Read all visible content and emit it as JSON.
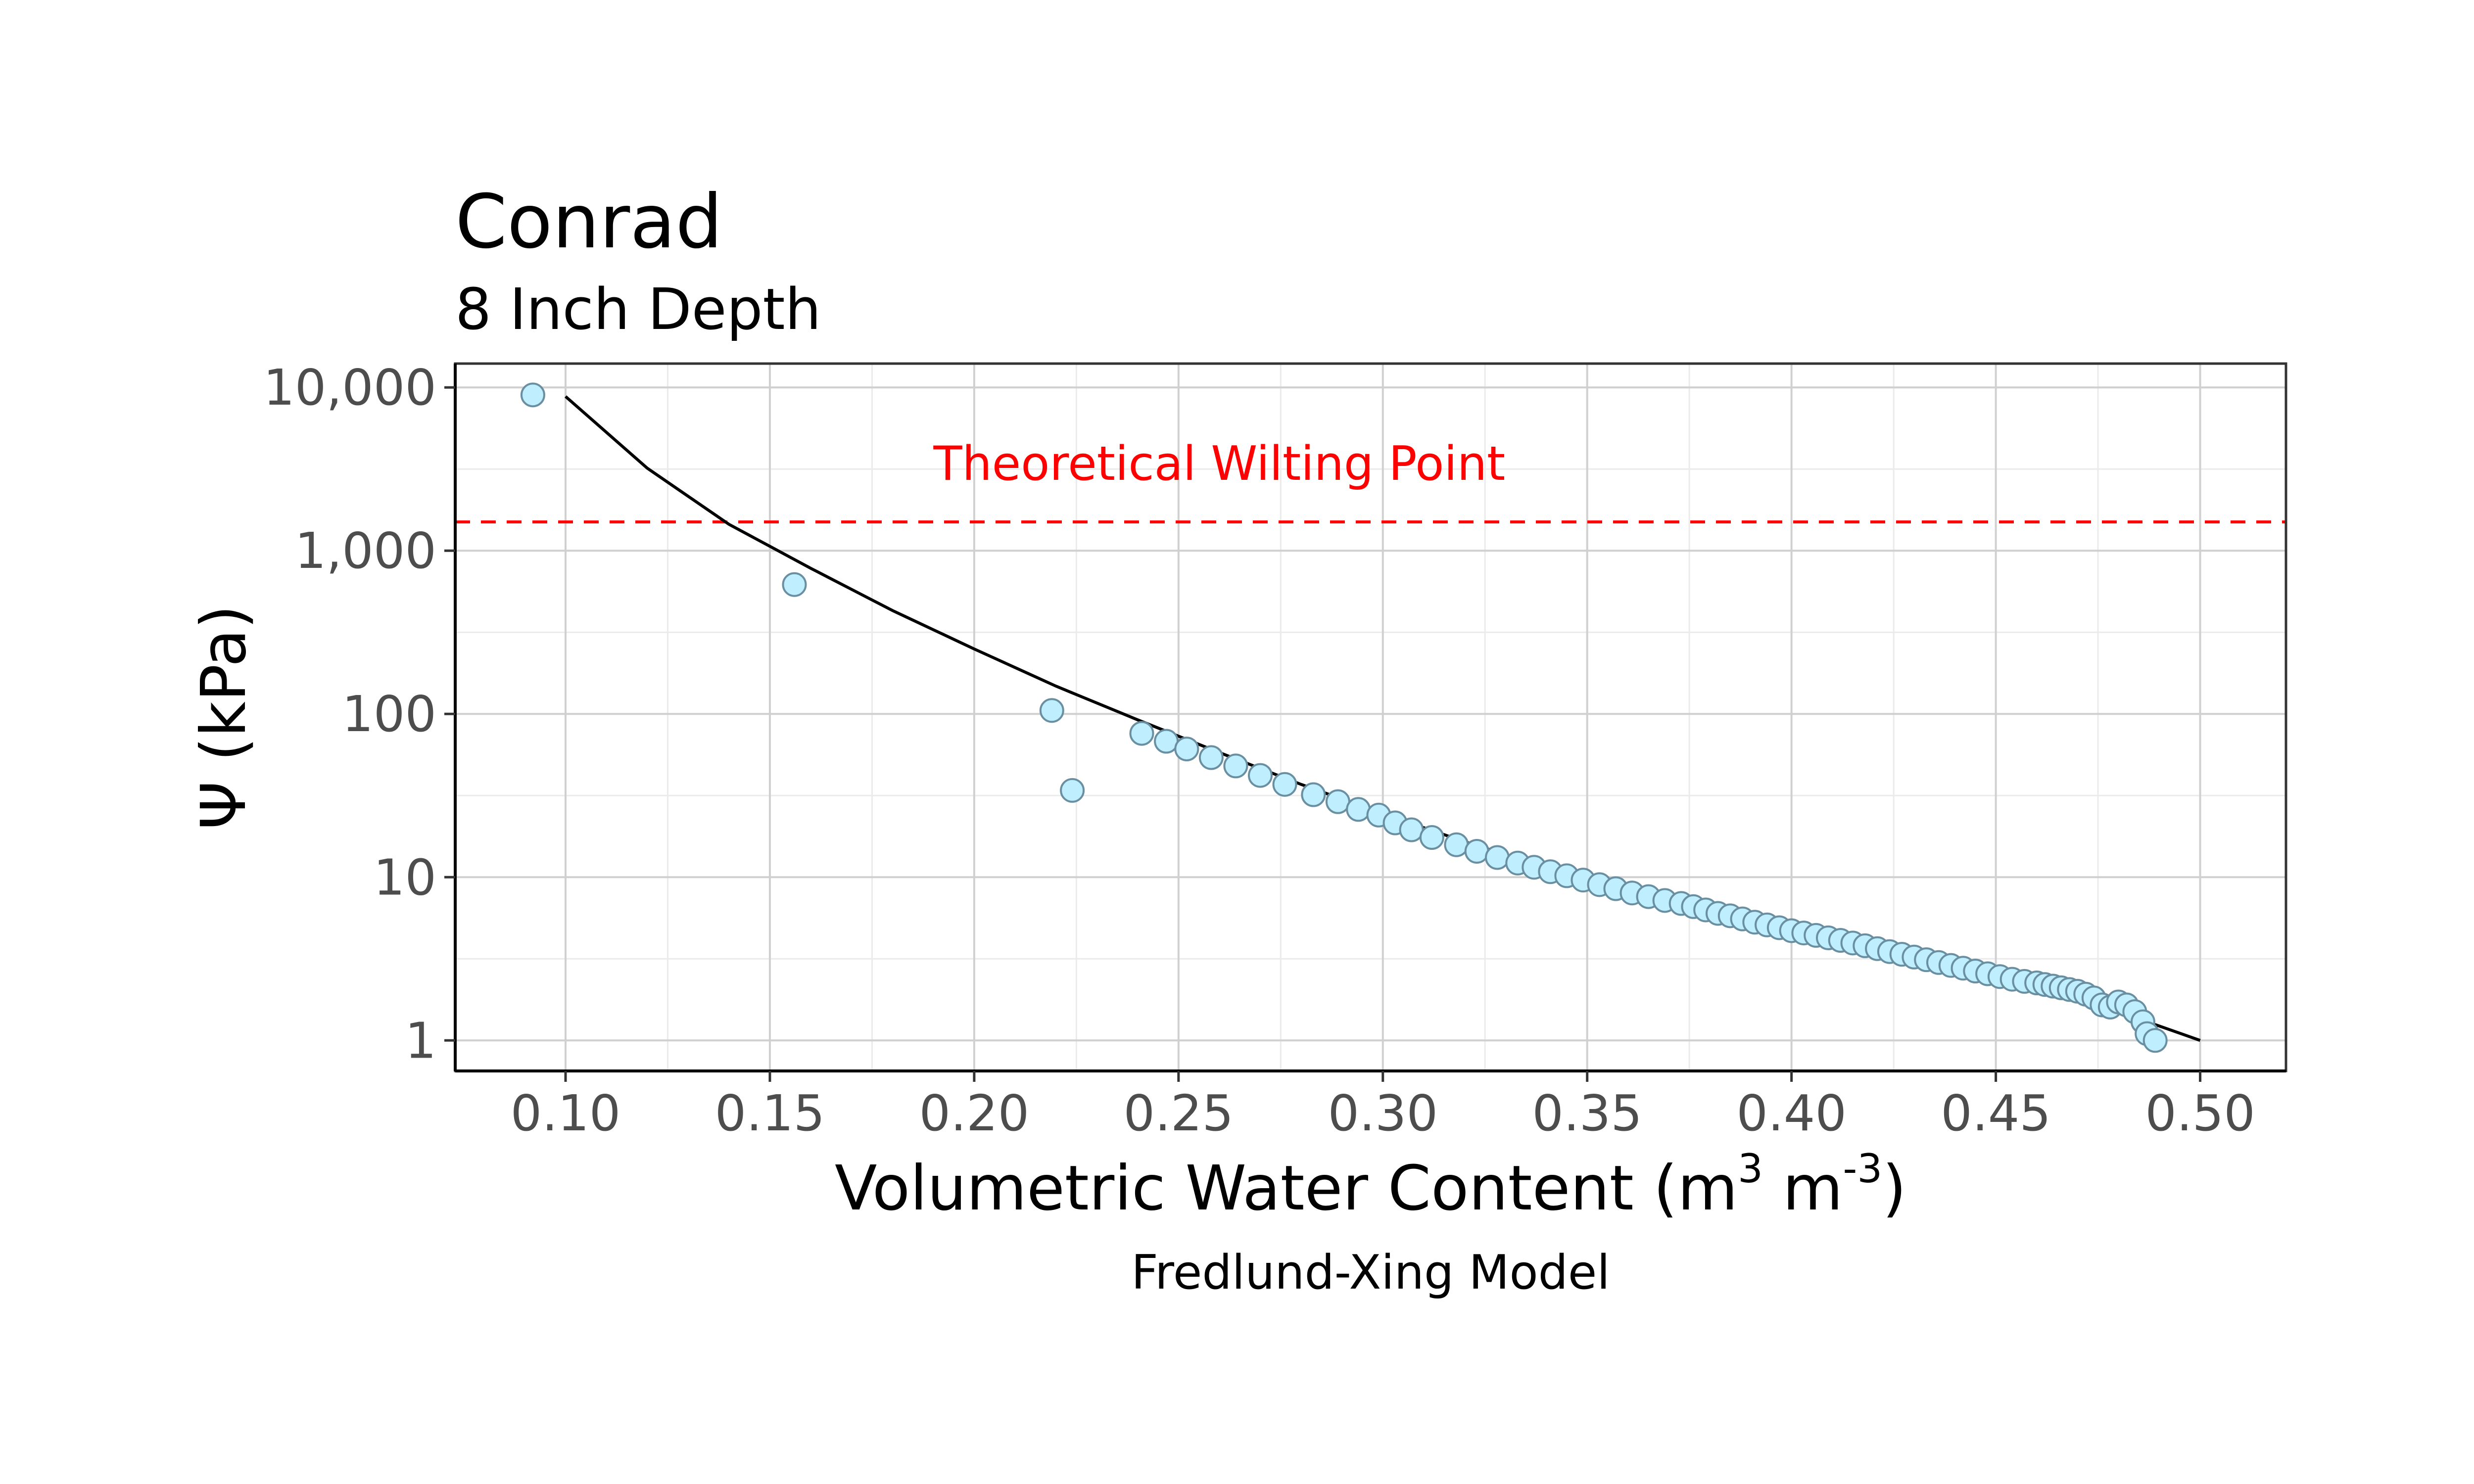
{
  "chart_data": {
    "type": "scatter",
    "title": "Conrad",
    "subtitle": "8 Inch Depth",
    "xlabel_main": "Volumetric Water Content (m",
    "xlabel_sup1": "3",
    "xlabel_mid": " m",
    "xlabel_sup2": "-3",
    "xlabel_end": ")",
    "ylabel": "Ψ (kPa)",
    "caption": "Fredlund-Xing Model",
    "xlim": [
      0.073,
      0.521
    ],
    "ylim": [
      0.65,
      14000
    ],
    "y_scale": "log10",
    "grid": true,
    "x_ticks": [
      {
        "value": 0.1,
        "label": "0.10"
      },
      {
        "value": 0.15,
        "label": "0.15"
      },
      {
        "value": 0.2,
        "label": "0.20"
      },
      {
        "value": 0.25,
        "label": "0.25"
      },
      {
        "value": 0.3,
        "label": "0.30"
      },
      {
        "value": 0.35,
        "label": "0.35"
      },
      {
        "value": 0.4,
        "label": "0.40"
      },
      {
        "value": 0.45,
        "label": "0.45"
      },
      {
        "value": 0.5,
        "label": "0.50"
      }
    ],
    "y_ticks": [
      {
        "value": 1,
        "label": "1"
      },
      {
        "value": 10,
        "label": "10"
      },
      {
        "value": 100,
        "label": "100"
      },
      {
        "value": 1000,
        "label": "1,000"
      },
      {
        "value": 10000,
        "label": "10,000"
      }
    ],
    "reference_line": {
      "y": 1500,
      "label": "Theoretical Wilting Point",
      "color": "#ff0000"
    },
    "point_fill": "#bfefff",
    "point_stroke": "#6a8fa0",
    "line_color": "#000000",
    "points": {
      "x": [
        0.092,
        0.156,
        0.219,
        0.224,
        0.241,
        0.247,
        0.252,
        0.258,
        0.264,
        0.27,
        0.276,
        0.283,
        0.289,
        0.294,
        0.299,
        0.303,
        0.307,
        0.312,
        0.318,
        0.323,
        0.328,
        0.333,
        0.337,
        0.341,
        0.345,
        0.349,
        0.353,
        0.357,
        0.361,
        0.365,
        0.369,
        0.373,
        0.376,
        0.379,
        0.382,
        0.385,
        0.388,
        0.391,
        0.394,
        0.397,
        0.4,
        0.403,
        0.406,
        0.409,
        0.412,
        0.415,
        0.418,
        0.421,
        0.424,
        0.427,
        0.43,
        0.433,
        0.436,
        0.439,
        0.442,
        0.445,
        0.448,
        0.451,
        0.454,
        0.457,
        0.46,
        0.462,
        0.464,
        0.466,
        0.468,
        0.47,
        0.472,
        0.474,
        0.476,
        0.478,
        0.48,
        0.482,
        0.484,
        0.486,
        0.487,
        0.489
      ],
      "y": [
        9000,
        620,
        105,
        34,
        76,
        68,
        61,
        54,
        48,
        42,
        37,
        32,
        29,
        26,
        24,
        21.5,
        19.5,
        17.5,
        15.8,
        14.4,
        13.2,
        12.2,
        11.5,
        10.8,
        10.2,
        9.6,
        9.0,
        8.5,
        8.0,
        7.6,
        7.2,
        6.9,
        6.6,
        6.3,
        6.0,
        5.8,
        5.55,
        5.3,
        5.1,
        4.9,
        4.7,
        4.55,
        4.4,
        4.25,
        4.1,
        3.95,
        3.8,
        3.65,
        3.5,
        3.37,
        3.24,
        3.12,
        3.0,
        2.88,
        2.77,
        2.66,
        2.56,
        2.46,
        2.37,
        2.3,
        2.25,
        2.2,
        2.15,
        2.1,
        2.05,
        2.0,
        1.92,
        1.82,
        1.65,
        1.6,
        1.72,
        1.65,
        1.5,
        1.3,
        1.1,
        1.0
      ]
    },
    "model_curve": {
      "x": [
        0.1,
        0.12,
        0.14,
        0.16,
        0.18,
        0.2,
        0.22,
        0.24,
        0.26,
        0.28,
        0.3,
        0.32,
        0.34,
        0.36,
        0.38,
        0.4,
        0.42,
        0.44,
        0.46,
        0.48,
        0.5
      ],
      "y": [
        8800,
        3200,
        1450,
        780,
        430,
        250,
        148,
        92,
        58,
        37,
        24.5,
        16.5,
        11.5,
        8.3,
        6.1,
        4.6,
        3.6,
        2.8,
        2.15,
        1.5,
        1.0
      ]
    }
  }
}
